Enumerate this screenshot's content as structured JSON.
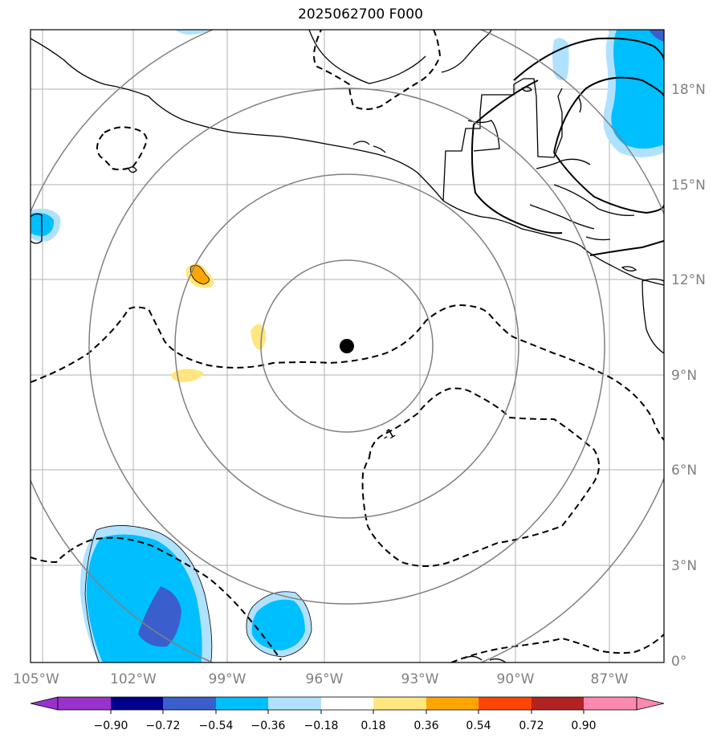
{
  "title": "2025062700 F000",
  "map": {
    "lon_range": [
      -105,
      -85
    ],
    "lat_range": [
      -0.2,
      20
    ],
    "lon_ticks": [
      "105°W",
      "102°W",
      "99°W",
      "96°W",
      "93°W",
      "90°W",
      "87°W"
    ],
    "lat_ticks": [
      "0°",
      "3°N",
      "6°N",
      "9°N",
      "12°N",
      "15°N",
      "18°N"
    ],
    "center_marker": {
      "lon": -95.0,
      "lat": 9.9
    },
    "contour_label": "-1",
    "gridlines": true
  },
  "colorbar": {
    "ticks": [
      "−0.90",
      "−0.72",
      "−0.54",
      "−0.36",
      "−0.18",
      "0.18",
      "0.36",
      "0.54",
      "0.72",
      "0.90"
    ],
    "colors": [
      "#9932CC",
      "#00008B",
      "#3A5FCD",
      "#00BFFF",
      "#B0E2FF",
      "#FFFFFF",
      "#FFE680",
      "#FFA500",
      "#FF4500",
      "#B22222",
      "#FF88B0"
    ]
  }
}
